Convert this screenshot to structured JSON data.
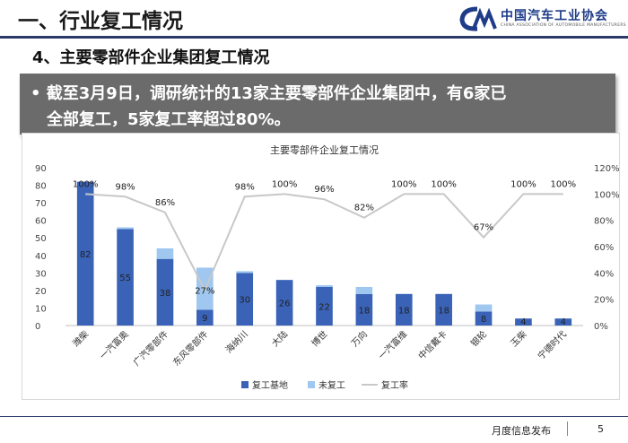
{
  "header": {
    "title": "一、行业复工情况",
    "logo_cn": "中国汽车工业协会",
    "logo_en": "CHINA ASSOCIATION OF AUTOMOBILE MANUFACTURERS"
  },
  "section_title": "4、主要零部件企业集团复工情况",
  "banner": {
    "line1": "• 截至3月9日，调研统计的13家主要零部件企业集团中，有6家已",
    "line2": "全部复工，5家复工率超过80%。"
  },
  "footer": {
    "text": "月度信息发布",
    "page": "5"
  },
  "colors": {
    "header_line": "#2b3a67",
    "banner_bg": "#6b6b6b",
    "bar_resumed": "#3a63b8",
    "bar_not_resumed": "#9fc7ef",
    "rate_line": "#c8c8c8"
  },
  "chart_data": {
    "type": "bar",
    "title": "主要零部件企业复工情况",
    "categories": [
      "潍柴",
      "一汽富奥",
      "广汽零部件",
      "东风零部件",
      "海纳川",
      "大陆",
      "博世",
      "万向",
      "一汽富维",
      "中信戴卡",
      "银轮",
      "玉柴",
      "宁德时代"
    ],
    "series": [
      {
        "name": "复工基地",
        "kind": "bar",
        "stack": "a",
        "values": [
          82,
          55,
          38,
          9,
          30,
          26,
          22,
          18,
          18,
          18,
          8,
          4,
          4
        ],
        "labels": [
          "82",
          "55",
          "38",
          "9",
          "30",
          "26",
          "22",
          "18",
          "18",
          "18",
          "8",
          "4",
          "4"
        ]
      },
      {
        "name": "未复工",
        "kind": "bar",
        "stack": "a",
        "values": [
          0,
          1,
          6,
          24,
          1,
          0,
          1,
          4,
          0,
          0,
          4,
          0,
          0
        ]
      },
      {
        "name": "复工率",
        "kind": "line",
        "axis": "right",
        "values": [
          100,
          98,
          86,
          27,
          98,
          100,
          96,
          82,
          100,
          100,
          67,
          100,
          100
        ],
        "labels": [
          "100%",
          "98%",
          "86%",
          "27%",
          "98%",
          "100%",
          "96%",
          "82%",
          "100%",
          "100%",
          "67%",
          "100%",
          "100%"
        ]
      }
    ],
    "y_left": {
      "min": 0,
      "max": 90,
      "ticks": [
        "0",
        "10",
        "20",
        "30",
        "40",
        "50",
        "60",
        "70",
        "80",
        "90"
      ]
    },
    "y_right": {
      "min": 0,
      "max": 120,
      "ticks": [
        "0%",
        "20%",
        "40%",
        "60%",
        "80%",
        "100%",
        "120%"
      ]
    },
    "grid": false,
    "legend_position": "bottom"
  }
}
